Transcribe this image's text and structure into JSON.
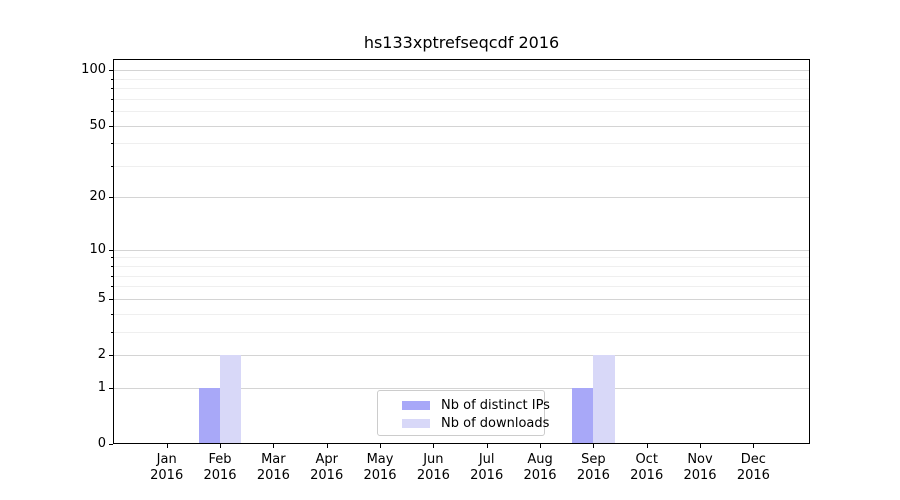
{
  "chart_data": {
    "type": "bar",
    "title": "hs133xptrefseqcdf 2016",
    "categories": [
      "Jan\n2016",
      "Feb\n2016",
      "Mar\n2016",
      "Apr\n2016",
      "May\n2016",
      "Jun\n2016",
      "Jul\n2016",
      "Aug\n2016",
      "Sep\n2016",
      "Oct\n2016",
      "Nov\n2016",
      "Dec\n2016"
    ],
    "series": [
      {
        "name": "Nb of distinct IPs",
        "color": "#a8a8f8",
        "values": [
          0,
          1,
          0,
          0,
          0,
          0,
          0,
          0,
          1,
          0,
          0,
          0
        ]
      },
      {
        "name": "Nb of downloads",
        "color": "#d8d8f8",
        "values": [
          0,
          2,
          0,
          0,
          0,
          0,
          0,
          0,
          2,
          0,
          0,
          0
        ]
      }
    ],
    "y_axis": {
      "scale": "log1p",
      "major_ticks": [
        0,
        1,
        2,
        5,
        10,
        20,
        50,
        100
      ],
      "minor_ticks": [
        3,
        4,
        6,
        7,
        8,
        9,
        30,
        40,
        60,
        70,
        80,
        90
      ],
      "range": [
        0,
        113
      ]
    },
    "x_axis": {
      "tick_count": 12
    },
    "legend": {
      "position": "lower center",
      "border_color": "#cccccc"
    },
    "grid": {
      "major_color": "#d4d4d4",
      "minor_color": "#efefef"
    },
    "colors": {
      "frame": "#000000",
      "background": "#ffffff",
      "text": "#000000"
    }
  }
}
